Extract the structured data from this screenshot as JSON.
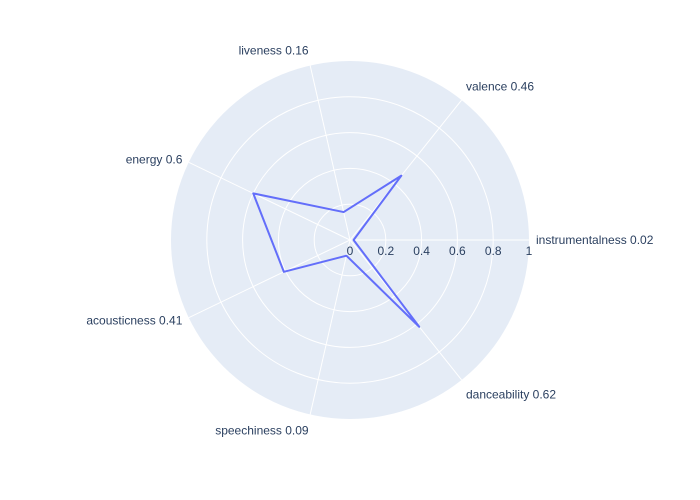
{
  "chart_data": {
    "type": "radar",
    "title": "",
    "categories": [
      "instrumentalness 0.02",
      "valence 0.46",
      "liveness 0.16",
      "energy 0.6",
      "acousticness 0.41",
      "speechiness 0.09",
      "danceability 0.62"
    ],
    "series": [
      {
        "values": [
          0.02,
          0.46,
          0.16,
          0.6,
          0.41,
          0.09,
          0.62
        ]
      }
    ],
    "radial_range": [
      0,
      1
    ],
    "radial_ticks": [
      "0",
      "0.2",
      "0.4",
      "0.6",
      "0.8",
      "1"
    ],
    "grid": true,
    "legend": false
  },
  "colors": {
    "polar_background": "#e5ecf6",
    "grid": "#ffffff",
    "series_line": "#636efa",
    "text": "#2a3f5f"
  }
}
